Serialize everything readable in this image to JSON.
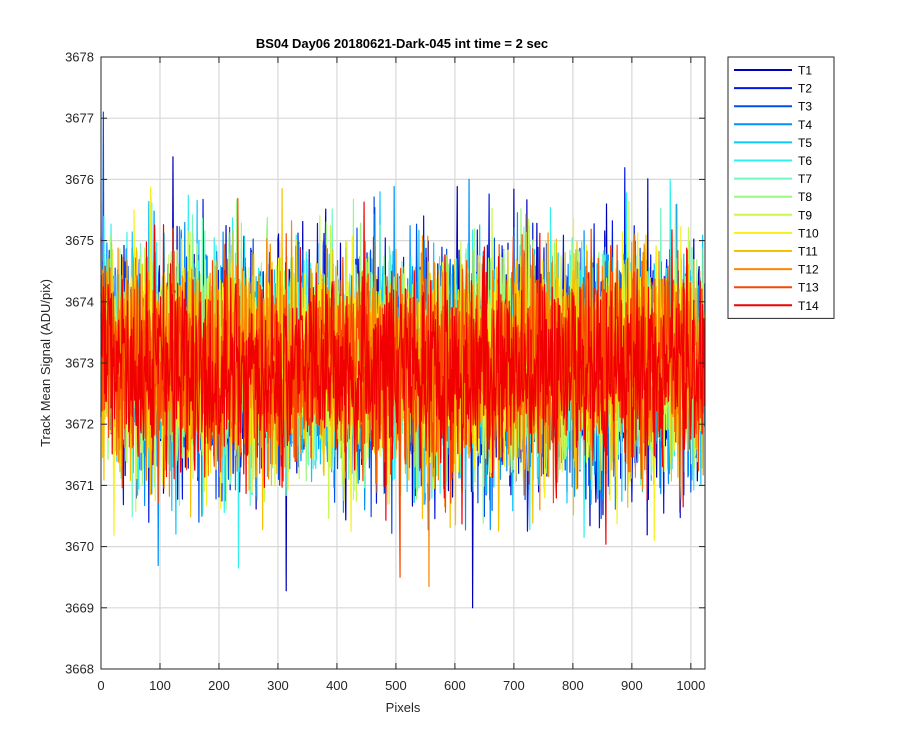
{
  "chart_data": {
    "type": "line",
    "title": "BS04 Day06 20180621-Dark-045 int time = 2 sec",
    "xlabel": "Pixels",
    "ylabel": "Track Mean Signal (ADU/pix)",
    "xlim": [
      0,
      1024
    ],
    "ylim": [
      3668,
      3678
    ],
    "xticks": [
      0,
      100,
      200,
      300,
      400,
      500,
      600,
      700,
      800,
      900,
      1000
    ],
    "yticks": [
      3668,
      3669,
      3670,
      3671,
      3672,
      3673,
      3674,
      3675,
      3676,
      3677,
      3678
    ],
    "grid": true,
    "legend_position": "outside-top-right",
    "n_points": 1024,
    "series": [
      {
        "name": "T1",
        "color": "#0000b8",
        "mean": 3673.0,
        "noise_std": 0.95
      },
      {
        "name": "T2",
        "color": "#0018e0",
        "mean": 3673.0,
        "noise_std": 0.95
      },
      {
        "name": "T3",
        "color": "#0050f0",
        "mean": 3673.0,
        "noise_std": 0.92
      },
      {
        "name": "T4",
        "color": "#0090f8",
        "mean": 3673.0,
        "noise_std": 0.92
      },
      {
        "name": "T5",
        "color": "#10c8f8",
        "mean": 3673.0,
        "noise_std": 0.9
      },
      {
        "name": "T6",
        "color": "#30f0f0",
        "mean": 3673.0,
        "noise_std": 0.9
      },
      {
        "name": "T7",
        "color": "#70f8c0",
        "mean": 3673.0,
        "noise_std": 0.88
      },
      {
        "name": "T8",
        "color": "#98f880",
        "mean": 3673.0,
        "noise_std": 0.88
      },
      {
        "name": "T9",
        "color": "#c8f850",
        "mean": 3673.0,
        "noise_std": 0.88
      },
      {
        "name": "T10",
        "color": "#f8f020",
        "mean": 3673.0,
        "noise_std": 0.88
      },
      {
        "name": "T11",
        "color": "#f8c000",
        "mean": 3673.0,
        "noise_std": 0.88
      },
      {
        "name": "T12",
        "color": "#f88800",
        "mean": 3673.0,
        "noise_std": 0.85
      },
      {
        "name": "T13",
        "color": "#f84800",
        "mean": 3673.0,
        "noise_std": 0.85
      },
      {
        "name": "T14",
        "color": "#f00000",
        "mean": 3672.9,
        "noise_std": 0.8
      }
    ],
    "notable_points": [
      {
        "series": "T1",
        "x": 630,
        "y": 3669.0
      },
      {
        "series": "T3",
        "x": 4,
        "y": 3677.1
      },
      {
        "series": "T6",
        "x": 233,
        "y": 3669.65
      },
      {
        "series": "T12",
        "x": 556,
        "y": 3669.35
      },
      {
        "series": "T13",
        "x": 507,
        "y": 3669.5
      }
    ]
  }
}
